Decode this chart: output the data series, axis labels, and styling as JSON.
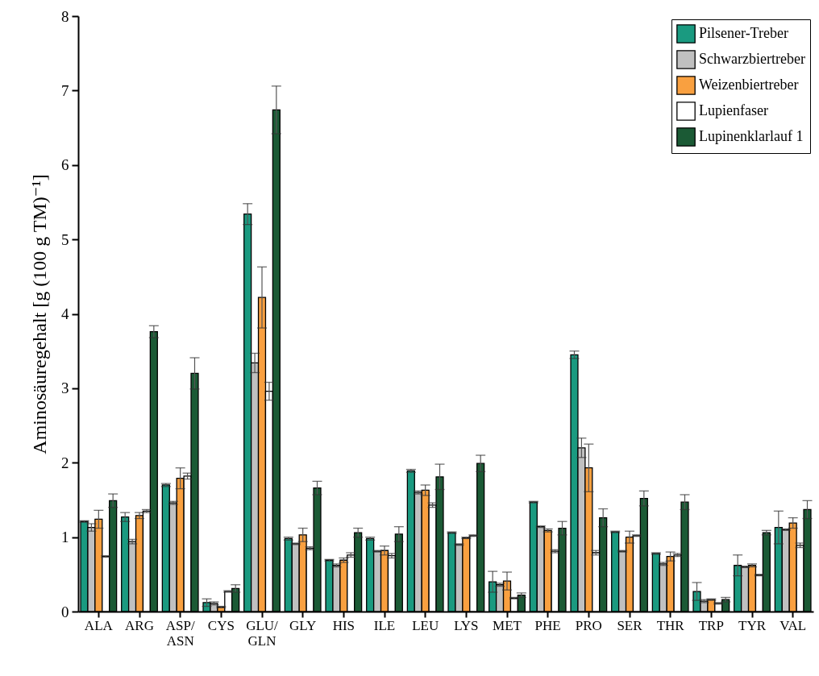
{
  "chart_data": {
    "type": "bar",
    "ylabel": "Aminosäuregehalt [g (100 g TM)⁻¹]",
    "categories": [
      "ALA",
      "ARG",
      "ASP/ASN",
      "CYS",
      "GLU/GLN",
      "GLY",
      "HIS",
      "ILE",
      "LEU",
      "LYS",
      "MET",
      "PHE",
      "PRO",
      "SER",
      "THR",
      "TRP",
      "TYR",
      "VAL"
    ],
    "series": [
      {
        "name": "Pilsener-Treber",
        "color": "#1a9a80",
        "values": [
          1.21,
          1.27,
          1.7,
          0.12,
          5.34,
          0.98,
          0.69,
          0.98,
          1.89,
          1.06,
          0.4,
          1.47,
          3.45,
          1.07,
          0.78,
          0.27,
          0.62,
          1.13
        ],
        "errors": [
          0.01,
          0.06,
          0.02,
          0.05,
          0.14,
          0.02,
          0.01,
          0.02,
          0.02,
          0.01,
          0.14,
          0.01,
          0.05,
          0.01,
          0.01,
          0.12,
          0.14,
          0.22
        ]
      },
      {
        "name": "Schwarzbiertreber",
        "color": "#c0c0c0",
        "values": [
          1.13,
          0.94,
          1.46,
          0.11,
          3.34,
          0.91,
          0.62,
          0.81,
          1.6,
          0.9,
          0.36,
          1.14,
          2.2,
          0.81,
          0.64,
          0.14,
          0.6,
          1.1
        ],
        "errors": [
          0.05,
          0.03,
          0.02,
          0.02,
          0.13,
          0.01,
          0.02,
          0.01,
          0.02,
          0.01,
          0.02,
          0.01,
          0.13,
          0.01,
          0.02,
          0.02,
          0.01,
          0.01
        ]
      },
      {
        "name": "Weizenbiertreber",
        "color": "#f9a040",
        "values": [
          1.24,
          1.29,
          1.79,
          0.06,
          4.22,
          1.03,
          0.69,
          0.82,
          1.63,
          0.99,
          0.41,
          1.09,
          1.93,
          1.0,
          0.74,
          0.16,
          0.62,
          1.19
        ],
        "errors": [
          0.12,
          0.04,
          0.14,
          0.01,
          0.41,
          0.09,
          0.03,
          0.06,
          0.07,
          0.01,
          0.12,
          0.02,
          0.32,
          0.08,
          0.06,
          0.01,
          0.02,
          0.07
        ]
      },
      {
        "name": "Lupienfaser",
        "color": "#ffffff",
        "values": [
          0.74,
          1.35,
          1.82,
          0.27,
          2.96,
          0.85,
          0.76,
          0.75,
          1.43,
          1.02,
          0.18,
          0.81,
          0.79,
          1.02,
          0.76,
          0.11,
          0.49,
          0.89
        ],
        "errors": [
          0.01,
          0.02,
          0.04,
          0.01,
          0.12,
          0.02,
          0.03,
          0.03,
          0.03,
          0.01,
          0.01,
          0.02,
          0.03,
          0.01,
          0.02,
          0.01,
          0.01,
          0.03
        ]
      },
      {
        "name": "Lupinenklarlauf 1",
        "color": "#1b5a35",
        "values": [
          1.49,
          3.76,
          3.2,
          0.31,
          6.74,
          1.66,
          1.06,
          1.04,
          1.81,
          1.99,
          0.22,
          1.12,
          1.26,
          1.52,
          1.47,
          0.16,
          1.06,
          1.37
        ],
        "errors": [
          0.09,
          0.08,
          0.21,
          0.05,
          0.32,
          0.09,
          0.06,
          0.1,
          0.17,
          0.11,
          0.03,
          0.09,
          0.12,
          0.1,
          0.1,
          0.03,
          0.03,
          0.12
        ]
      }
    ],
    "ylim": [
      0,
      8
    ],
    "yticks": [
      0,
      1,
      2,
      3,
      4,
      5,
      6,
      7,
      8
    ],
    "grid": false,
    "legend": "top right"
  }
}
